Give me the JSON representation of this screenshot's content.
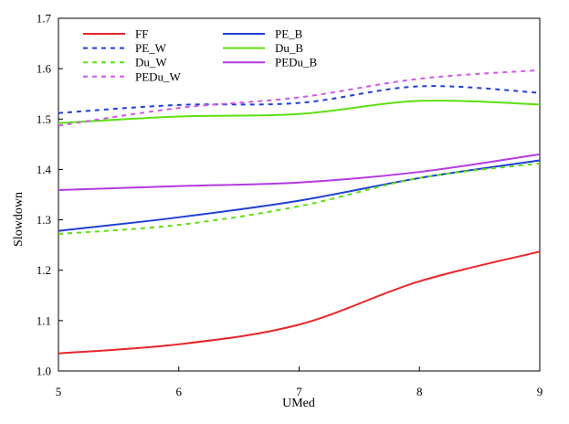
{
  "chart_data": {
    "type": "line",
    "title": "",
    "xlabel": "UMed",
    "ylabel": "Slowdown",
    "xlim": [
      5,
      9
    ],
    "ylim": [
      1.0,
      1.7
    ],
    "x_ticks": [
      5,
      6,
      7,
      8,
      9
    ],
    "y_ticks": [
      "1.0",
      "1.1",
      "1.2",
      "1.3",
      "1.4",
      "1.5",
      "1.6",
      "1.7"
    ],
    "grid": false,
    "legend_position": "top-left",
    "x": [
      5,
      6,
      7,
      8,
      9
    ],
    "series": [
      {
        "name": "FF",
        "color": "#e8262a",
        "dash": "solid",
        "values": [
          1.035,
          1.053,
          1.092,
          1.178,
          1.237
        ]
      },
      {
        "name": "PE_B",
        "color": "#2040d0",
        "dash": "solid",
        "values": [
          1.278,
          1.305,
          1.338,
          1.383,
          1.418
        ]
      },
      {
        "name": "PE_W",
        "color": "#2040d0",
        "dash": "dashed",
        "values": [
          1.512,
          1.528,
          1.532,
          1.565,
          1.552
        ]
      },
      {
        "name": "Du_B",
        "color": "#5ce012",
        "dash": "solid",
        "values": [
          1.492,
          1.505,
          1.51,
          1.536,
          1.529
        ]
      },
      {
        "name": "Du_W",
        "color": "#5ce012",
        "dash": "dashed",
        "values": [
          1.272,
          1.29,
          1.327,
          1.383,
          1.412
        ]
      },
      {
        "name": "PEDu_B",
        "color": "#b43adf",
        "dash": "solid",
        "values": [
          1.359,
          1.367,
          1.374,
          1.395,
          1.43
        ]
      },
      {
        "name": "PEDu_W",
        "color": "#d058e8",
        "dash": "dashed",
        "values": [
          1.487,
          1.522,
          1.543,
          1.58,
          1.597
        ]
      }
    ]
  }
}
